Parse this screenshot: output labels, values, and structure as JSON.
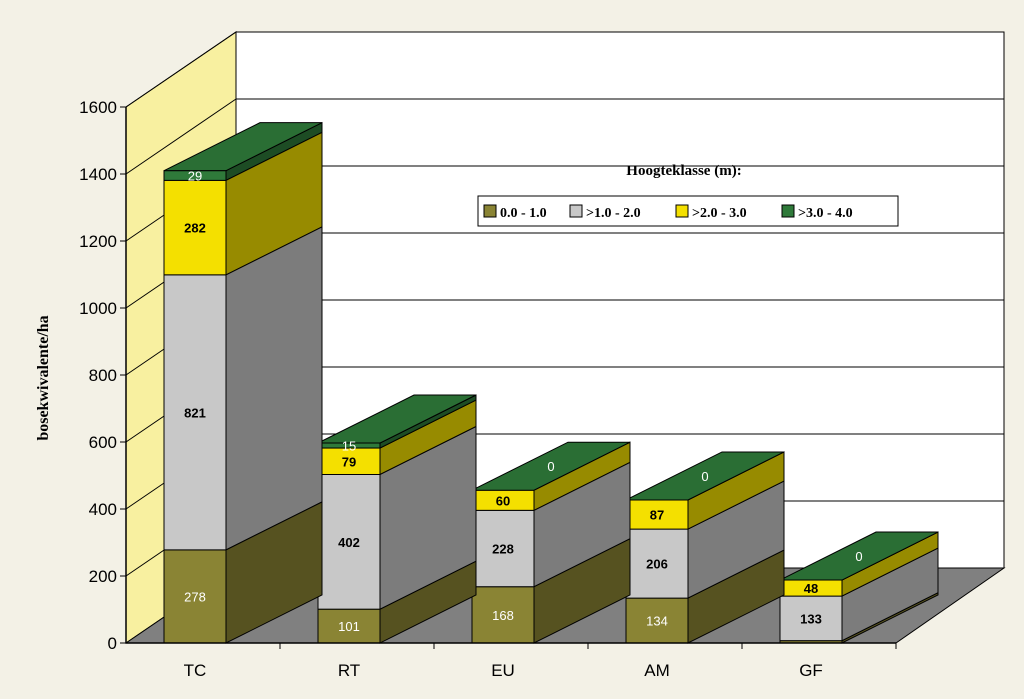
{
  "chart_data": {
    "type": "bar",
    "stacked": true,
    "three_d": true,
    "categories": [
      "TC",
      "RT",
      "EU",
      "AM",
      "GF"
    ],
    "ylabel": "bosekwivalente/ha",
    "ylim": [
      0,
      1600
    ],
    "yticks": [
      0,
      200,
      400,
      600,
      800,
      1000,
      1200,
      1400,
      1600
    ],
    "grid": true,
    "legend_title": "Hoogteklasse (m):",
    "legend_position": "upper-right",
    "series": [
      {
        "name": "0.0 - 1.0",
        "values": [
          278,
          101,
          168,
          134,
          7
        ],
        "color": "#8a8434",
        "labels": [
          "278",
          "101",
          "168",
          "134",
          ""
        ]
      },
      {
        "name": ">1.0 - 2.0",
        "values": [
          821,
          402,
          228,
          206,
          133
        ],
        "color": "#c8c8c8",
        "labels": [
          "821",
          "402",
          "228",
          "206",
          "133"
        ]
      },
      {
        "name": ">2.0 - 3.0",
        "values": [
          282,
          79,
          60,
          87,
          48
        ],
        "color": "#f4e000",
        "labels": [
          "282",
          "79",
          "60",
          "87",
          "48"
        ]
      },
      {
        "name": ">3.0 - 4.0",
        "values": [
          29,
          15,
          0,
          0,
          0
        ],
        "color": "#2f7a3a",
        "labels": [
          "29",
          "15",
          "0",
          "0",
          "0"
        ]
      }
    ],
    "colors": {
      "background": "#f3f1e6",
      "back_wall": "#ffffff",
      "side_wall": "#f8f0a0",
      "floor": "#808080",
      "gridline": "#000000"
    }
  }
}
